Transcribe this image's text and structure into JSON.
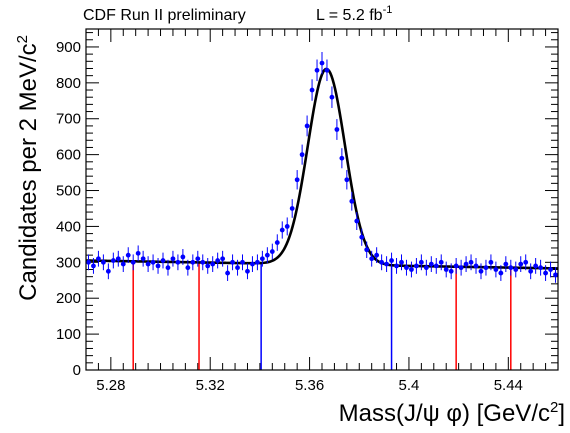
{
  "chart_data": {
    "type": "scatter",
    "title": "",
    "annotations": {
      "experiment": "CDF Run II preliminary",
      "lumi_prefix": "L = 5.2 fb",
      "lumi_sup": "-1"
    },
    "xlabel": "Mass(J/ψ φ) [GeV/c",
    "xlabel_sup": "2",
    "xlabel_suffix": "]",
    "ylabel": "Candidates per 2 MeV/c",
    "ylabel_sup": "2",
    "xlim": [
      5.27,
      5.46
    ],
    "ylim": [
      0,
      950
    ],
    "x_ticks": [
      5.28,
      5.32,
      5.36,
      5.4,
      5.44
    ],
    "x_tick_labels": [
      "5.28",
      "5.32",
      "5.36",
      "5.4",
      "5.44"
    ],
    "y_ticks": [
      0,
      100,
      200,
      300,
      400,
      500,
      600,
      700,
      800,
      900
    ],
    "y_tick_labels": [
      "0",
      "100",
      "200",
      "300",
      "400",
      "500",
      "600",
      "700",
      "800",
      "900"
    ],
    "grid": false,
    "series": [
      {
        "kind": "data-points",
        "color": "#0000ff",
        "x": [
          5.271,
          5.273,
          5.275,
          5.277,
          5.279,
          5.281,
          5.283,
          5.285,
          5.287,
          5.289,
          5.291,
          5.293,
          5.295,
          5.297,
          5.299,
          5.301,
          5.303,
          5.305,
          5.307,
          5.309,
          5.311,
          5.313,
          5.315,
          5.317,
          5.319,
          5.321,
          5.323,
          5.325,
          5.327,
          5.329,
          5.331,
          5.333,
          5.335,
          5.337,
          5.339,
          5.341,
          5.343,
          5.345,
          5.347,
          5.349,
          5.351,
          5.353,
          5.355,
          5.357,
          5.359,
          5.361,
          5.363,
          5.365,
          5.367,
          5.369,
          5.371,
          5.373,
          5.375,
          5.377,
          5.379,
          5.381,
          5.383,
          5.385,
          5.387,
          5.389,
          5.391,
          5.393,
          5.395,
          5.397,
          5.399,
          5.401,
          5.403,
          5.405,
          5.407,
          5.409,
          5.411,
          5.413,
          5.415,
          5.417,
          5.419,
          5.421,
          5.423,
          5.425,
          5.427,
          5.429,
          5.431,
          5.433,
          5.435,
          5.437,
          5.439,
          5.441,
          5.443,
          5.445,
          5.447,
          5.449,
          5.451,
          5.453,
          5.455,
          5.457,
          5.459
        ],
        "y": [
          300,
          290,
          310,
          300,
          275,
          305,
          310,
          295,
          320,
          300,
          325,
          310,
          295,
          300,
          290,
          305,
          285,
          310,
          300,
          315,
          285,
          300,
          310,
          300,
          290,
          295,
          305,
          310,
          270,
          300,
          285,
          300,
          275,
          295,
          300,
          310,
          320,
          330,
          355,
          390,
          400,
          450,
          530,
          600,
          680,
          780,
          835,
          855,
          835,
          760,
          670,
          590,
          530,
          470,
          415,
          370,
          335,
          310,
          320,
          300,
          295,
          305,
          290,
          300,
          285,
          280,
          290,
          300,
          285,
          295,
          290,
          300,
          280,
          275,
          290,
          285,
          295,
          300,
          290,
          275,
          285,
          300,
          280,
          270,
          295,
          285,
          280,
          295,
          300,
          275,
          290,
          285,
          270,
          280,
          265
        ],
        "err": [
          22,
          22,
          22,
          22,
          22,
          22,
          22,
          22,
          22,
          22,
          22,
          22,
          22,
          22,
          22,
          22,
          22,
          22,
          22,
          22,
          22,
          22,
          22,
          22,
          22,
          22,
          22,
          22,
          22,
          22,
          22,
          22,
          22,
          22,
          22,
          22,
          22,
          22,
          23,
          24,
          25,
          26,
          27,
          28,
          29,
          30,
          30,
          31,
          30,
          30,
          29,
          28,
          27,
          26,
          25,
          24,
          23,
          22,
          22,
          22,
          22,
          22,
          22,
          22,
          22,
          22,
          22,
          22,
          22,
          22,
          22,
          22,
          22,
          22,
          22,
          22,
          22,
          22,
          22,
          22,
          22,
          22,
          22,
          22,
          22,
          22,
          22,
          22,
          22,
          22,
          22,
          22,
          22,
          22,
          22
        ]
      },
      {
        "kind": "fit-curve",
        "color": "#000000",
        "model": "gaussian-plus-linear",
        "mean": 5.3668,
        "sigma": 0.0075,
        "amplitude": 545,
        "background_at_5.27": 305,
        "background_at_5.46": 283
      },
      {
        "kind": "signal-window-lines",
        "color": "#0000ff",
        "x": [
          5.3405,
          5.393
        ]
      },
      {
        "kind": "sideband-lines",
        "color": "#ff0000",
        "x": [
          5.289,
          5.3155,
          5.419,
          5.441
        ]
      }
    ]
  }
}
